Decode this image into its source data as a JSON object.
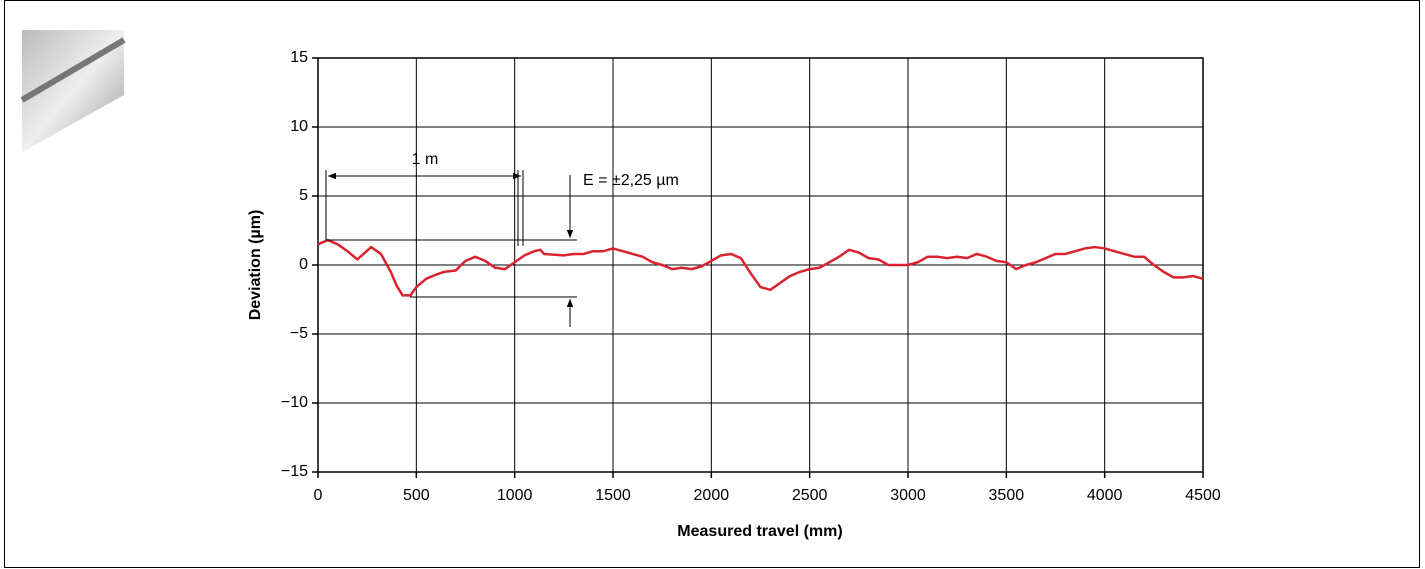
{
  "chart_data": {
    "type": "line",
    "x_label": "Measured travel (mm)",
    "y_label": "Deviation (µm)",
    "annotations": [
      "1 m",
      "E = ±2,25 µm"
    ],
    "xlim": [
      0,
      4500
    ],
    "xticks": [
      0,
      500,
      1000,
      1500,
      2000,
      2500,
      3000,
      3500,
      4000,
      4500
    ],
    "ylim": [
      -15,
      15
    ],
    "yticks": [
      {
        "value": -15,
        "label": "−15"
      },
      {
        "value": -10,
        "label": "−10"
      },
      {
        "value": -5,
        "label": "−5"
      },
      0,
      5,
      10,
      15
    ],
    "grid": true,
    "x": [
      0,
      50,
      100,
      150,
      200,
      270,
      320,
      370,
      400,
      430,
      470,
      500,
      550,
      600,
      640,
      700,
      750,
      800,
      850,
      900,
      950,
      1000,
      1050,
      1100,
      1130,
      1150,
      1250,
      1300,
      1350,
      1400,
      1450,
      1500,
      1550,
      1600,
      1650,
      1700,
      1750,
      1800,
      1850,
      1900,
      1950,
      2000,
      2050,
      2100,
      2150,
      2200,
      2250,
      2300,
      2350,
      2400,
      2450,
      2500,
      2550,
      2600,
      2650,
      2700,
      2750,
      2800,
      2850,
      2900,
      2950,
      3000,
      3050,
      3100,
      3150,
      3200,
      3250,
      3300,
      3350,
      3400,
      3450,
      3500,
      3550,
      3600,
      3650,
      3700,
      3750,
      3800,
      3850,
      3900,
      3950,
      4000,
      4050,
      4100,
      4150,
      4200,
      4250,
      4300,
      4350,
      4400,
      4450,
      4500
    ],
    "series": [
      {
        "color": "#d9232e",
        "values": [
          1.5,
          1.8,
          1.5,
          1.0,
          0.4,
          1.3,
          0.8,
          -0.5,
          -1.5,
          -2.2,
          -2.2,
          -1.6,
          -1.0,
          -0.7,
          -0.5,
          -0.4,
          0.3,
          0.6,
          0.3,
          -0.2,
          -0.3,
          0.2,
          0.7,
          1.0,
          1.1,
          0.8,
          0.7,
          0.8,
          0.8,
          1.0,
          1.0,
          1.2,
          1.0,
          0.8,
          0.6,
          0.2,
          0,
          -0.3,
          -0.2,
          -0.3,
          -0.1,
          0.3,
          0.7,
          0.8,
          0.5,
          -0.6,
          -1.6,
          -1.8,
          -1.3,
          -0.8,
          -0.5,
          -0.3,
          -0.2,
          0.2,
          0.6,
          1.1,
          0.9,
          0.5,
          0.4,
          0,
          0,
          0,
          0.2,
          0.6,
          0.6,
          0.5,
          0.6,
          0.5,
          0.8,
          0.6,
          0.3,
          0.2,
          -0.3,
          0,
          0.2,
          0.5,
          0.8,
          0.8,
          1.0,
          1.2,
          1.3,
          1.2,
          1.0,
          0.8,
          0.6,
          0.6,
          0,
          -0.5,
          -0.9,
          -0.9,
          -0.8,
          -1.0
        ]
      }
    ]
  }
}
